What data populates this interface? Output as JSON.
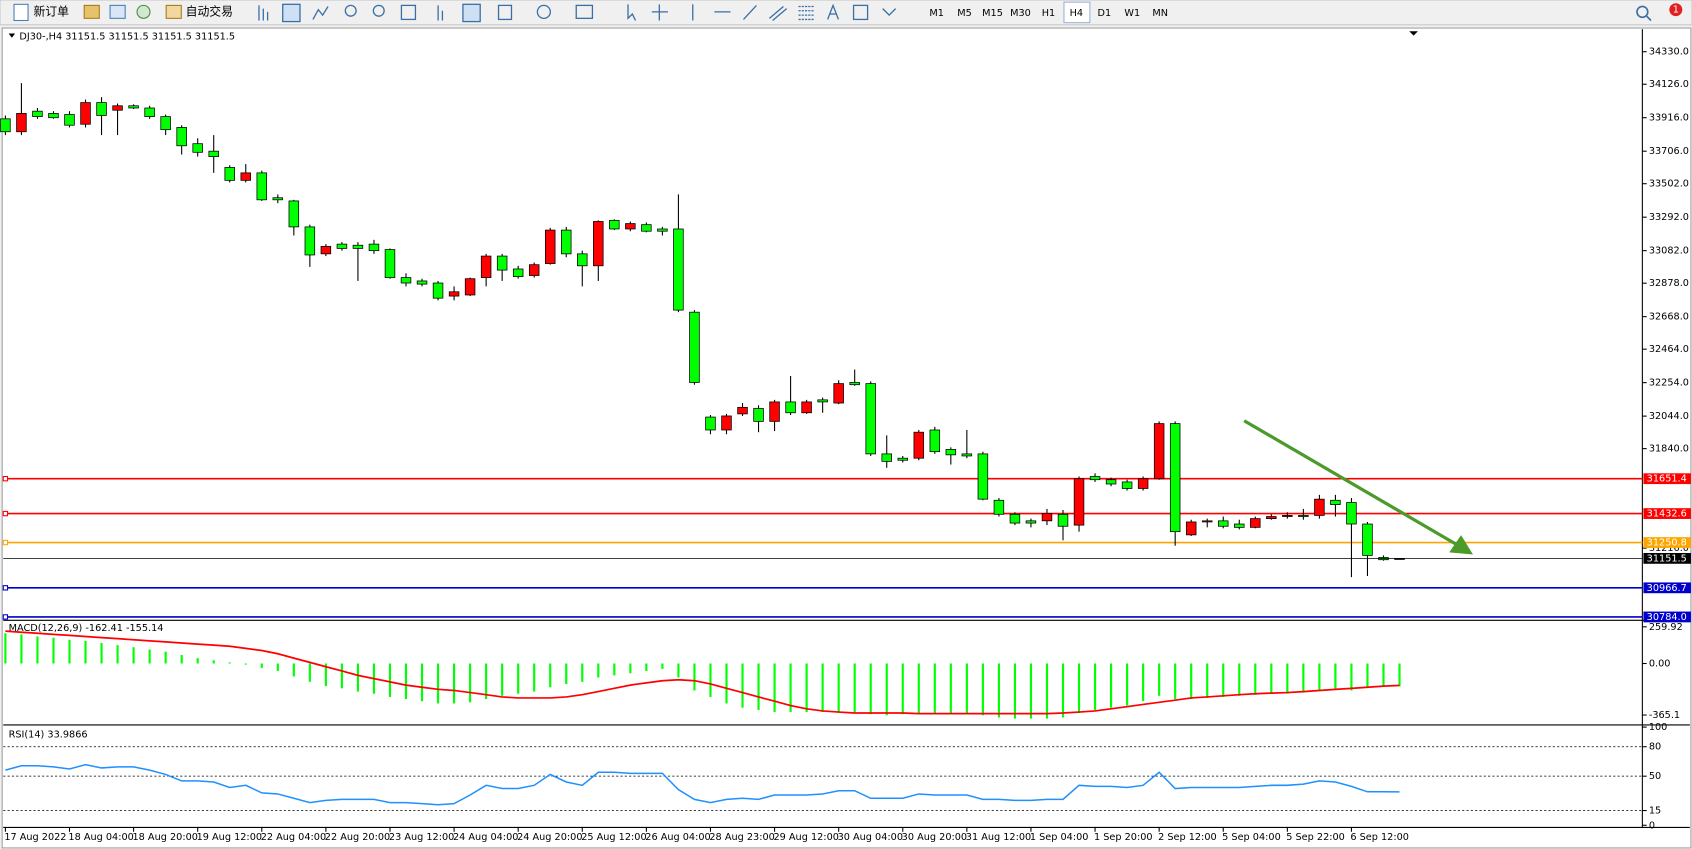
{
  "toolbar": {
    "new_order": "新订单",
    "auto_trading": "自动交易",
    "timeframes": [
      "M1",
      "M5",
      "M15",
      "M30",
      "H1",
      "H4",
      "D1",
      "W1",
      "MN"
    ],
    "notifications": 1
  },
  "chart_data": [
    {
      "type": "candlestick",
      "symbol": "DJ30-,H4",
      "categories": [
        "17 Aug 2022",
        null,
        null,
        null,
        "18 Aug 04:00",
        null,
        null,
        null,
        "18 Aug 20:00",
        null,
        null,
        null,
        "19 Aug 12:00",
        null,
        null,
        null,
        "22 Aug 04:00",
        null,
        null,
        null,
        "22 Aug 20:00",
        null,
        null,
        null,
        "23 Aug 12:00",
        null,
        null,
        null,
        "24 Aug 04:00",
        null,
        null,
        null,
        "24 Aug 20:00",
        null,
        null,
        null,
        "25 Aug 12:00",
        null,
        null,
        null,
        "26 Aug 04:00",
        null,
        null,
        null,
        "28 Aug 23:00",
        null,
        null,
        null,
        "29 Aug 12:00",
        null,
        null,
        null,
        "30 Aug 04:00",
        null,
        null,
        null,
        "30 Aug 20:00",
        null,
        null,
        null,
        "31 Aug 12:00",
        null,
        null,
        null,
        "1 Sep 04:00",
        null,
        null,
        null,
        "1 Sep 20:00",
        null,
        null,
        null,
        "2 Sep 12:00",
        null,
        null,
        null,
        "5 Sep 04:00",
        null,
        null,
        null,
        "5 Sep 22:00",
        null,
        null,
        null,
        "6 Sep 12:00",
        null,
        null,
        null
      ],
      "open": [
        33909,
        33828,
        33957,
        33943,
        33936,
        33875,
        34011,
        33963,
        33991,
        33977,
        33923,
        33855,
        33753,
        33706,
        33604,
        33523,
        33570,
        33414,
        33394,
        33231,
        33062,
        33123,
        33116,
        33123,
        33089,
        32913,
        32892,
        32879,
        32797,
        32804,
        32913,
        33048,
        32967,
        32926,
        33001,
        33211,
        33062,
        32987,
        33272,
        33218,
        33245,
        33218,
        33218,
        32696,
        32038,
        31957,
        32058,
        32092,
        32011,
        32133,
        32065,
        32146,
        32126,
        32255,
        32248,
        31807,
        31780,
        31780,
        31957,
        31835,
        31807,
        31807,
        31516,
        31428,
        31387,
        31387,
        31428,
        31360,
        31665,
        31645,
        31631,
        31590,
        31651,
        31997,
        31299,
        31380,
        31387,
        31367,
        31346,
        31401,
        31414,
        31421,
        31421,
        31516,
        31502,
        31367,
        31157,
        31151.5
      ],
      "high": [
        33930,
        34133,
        33977,
        33957,
        33957,
        34030,
        34045,
        34005,
        34000,
        33991,
        33936,
        33869,
        33787,
        33807,
        33618,
        33625,
        33584,
        33435,
        33401,
        33245,
        33123,
        33136,
        33136,
        33150,
        33096,
        32940,
        32906,
        32892,
        32858,
        32913,
        33062,
        33062,
        32987,
        33008,
        33225,
        33231,
        33082,
        33272,
        33279,
        33265,
        33259,
        33231,
        33435,
        32709,
        32051,
        32058,
        32126,
        32112,
        32146,
        32296,
        32146,
        32160,
        32269,
        32336,
        32262,
        31923,
        31794,
        31957,
        31977,
        31848,
        31957,
        31821,
        31530,
        31441,
        31401,
        31462,
        31455,
        31665,
        31685,
        31658,
        31645,
        31665,
        32011,
        32011,
        31394,
        31401,
        31414,
        31394,
        31414,
        31428,
        31441,
        31462,
        31550,
        31550,
        31530,
        31380,
        31170,
        31151.5
      ],
      "low": [
        33807,
        33807,
        33909,
        33909,
        33855,
        33855,
        33807,
        33807,
        33970,
        33909,
        33807,
        33685,
        33672,
        33570,
        33510,
        33510,
        33394,
        33380,
        33177,
        32980,
        33048,
        33082,
        32892,
        33062,
        32906,
        32858,
        32858,
        32770,
        32770,
        32797,
        32858,
        32892,
        32906,
        32913,
        32994,
        33041,
        32858,
        32892,
        33211,
        33204,
        33197,
        33177,
        32696,
        32241,
        31930,
        31930,
        32045,
        31943,
        31950,
        32051,
        32058,
        32065,
        32119,
        32234,
        31794,
        31720,
        31753,
        31767,
        31807,
        31740,
        31780,
        31516,
        31414,
        31360,
        31346,
        31360,
        31265,
        31319,
        31631,
        31604,
        31577,
        31577,
        31645,
        31231,
        31292,
        31346,
        31340,
        31333,
        31340,
        31394,
        31401,
        31394,
        31401,
        31414,
        31034,
        31041,
        31137,
        31151.5
      ],
      "close": [
        33828,
        33943,
        33923,
        33916,
        33869,
        34011,
        33930,
        33991,
        33977,
        33923,
        33841,
        33740,
        33699,
        33672,
        33523,
        33570,
        33401,
        33401,
        33231,
        33055,
        33109,
        33096,
        33096,
        33082,
        32913,
        32879,
        32872,
        32784,
        32824,
        32906,
        33048,
        32960,
        32919,
        32994,
        33211,
        33062,
        32987,
        33265,
        33218,
        33252,
        33204,
        33204,
        32709,
        32255,
        31957,
        32045,
        32099,
        32011,
        32133,
        32065,
        32133,
        32133,
        32248,
        32241,
        31807,
        31760,
        31767,
        31943,
        31821,
        31801,
        31794,
        31523,
        31428,
        31373,
        31373,
        31434,
        31353,
        31651,
        31645,
        31618,
        31590,
        31651,
        31997,
        31319,
        31380,
        31387,
        31353,
        31346,
        31401,
        31414,
        31421,
        31414,
        31523,
        31489,
        31367,
        31170,
        31143,
        31151.5
      ],
      "up_color": "#ff0000",
      "down_color": "#00ff00",
      "ylim": [
        30763,
        34465
      ],
      "yticks": [
        {
          "value": 34330,
          "label": "34330.0"
        },
        {
          "value": 34126,
          "label": "34126.0"
        },
        {
          "value": 33916,
          "label": "33916.0"
        },
        {
          "value": 33706,
          "label": "33706.0"
        },
        {
          "value": 33502,
          "label": "33502.0"
        },
        {
          "value": 33292,
          "label": "33292.0"
        },
        {
          "value": 33082,
          "label": "33082.0"
        },
        {
          "value": 32878,
          "label": "32878.0"
        },
        {
          "value": 32668,
          "label": "32668.0"
        },
        {
          "value": 32464,
          "label": "32464.0"
        },
        {
          "value": 32254,
          "label": "32254.0"
        },
        {
          "value": 32044,
          "label": "32044.0"
        },
        {
          "value": 31840,
          "label": "31840.0"
        },
        {
          "value": 31216,
          "label": "31216.0"
        }
      ],
      "hlines": [
        {
          "value": 31651.4,
          "color": "#ff0000"
        },
        {
          "value": 31432.6,
          "color": "#ff0000"
        },
        {
          "value": 31250.8,
          "color": "#ffa500"
        },
        {
          "value": 30966.7,
          "color": "#0000cc"
        },
        {
          "value": 30784,
          "label": "30784.0",
          "color": "#0000cc"
        }
      ]
    },
    {
      "type": "macd",
      "title": "MACD(12,26,9)",
      "series": [
        {
          "color": "#00ff00",
          "values": [
            214,
            206,
            191,
            183,
            168,
            160,
            145,
            130,
            115,
            99,
            84,
            61,
            38,
            23,
            8,
            -8,
            -31,
            -53,
            -92,
            -130,
            -160,
            -176,
            -199,
            -214,
            -237,
            -252,
            -267,
            -283,
            -283,
            -275,
            -252,
            -229,
            -214,
            -199,
            -168,
            -145,
            -130,
            -99,
            -84,
            -69,
            -53,
            -38,
            -99,
            -191,
            -237,
            -283,
            -313,
            -329,
            -344,
            -344,
            -344,
            -344,
            -344,
            -344,
            -359,
            -367,
            -359,
            -351,
            -351,
            -351,
            -359,
            -367,
            -382,
            -390,
            -390,
            -390,
            -382,
            -351,
            -329,
            -313,
            -298,
            -267,
            -229,
            -252,
            -252,
            -244,
            -237,
            -229,
            -222,
            -214,
            -214,
            -206,
            -191,
            -183,
            -191,
            -168,
            -165,
            -162.41
          ]
        },
        {
          "color": "#ff0000",
          "values": [
            229,
            221,
            214,
            206,
            199,
            191,
            183,
            176,
            168,
            160,
            153,
            145,
            137,
            130,
            122,
            107,
            92,
            69,
            38,
            8,
            -23,
            -53,
            -84,
            -107,
            -130,
            -153,
            -168,
            -183,
            -191,
            -206,
            -221,
            -237,
            -244,
            -244,
            -244,
            -237,
            -221,
            -199,
            -176,
            -153,
            -137,
            -122,
            -115,
            -122,
            -145,
            -176,
            -206,
            -237,
            -267,
            -298,
            -321,
            -336,
            -344,
            -351,
            -351,
            -351,
            -351,
            -355,
            -355,
            -355,
            -355,
            -355,
            -355,
            -355,
            -355,
            -355,
            -351,
            -344,
            -336,
            -321,
            -306,
            -290,
            -275,
            -260,
            -244,
            -237,
            -229,
            -221,
            -214,
            -210,
            -206,
            -199,
            -191,
            -183,
            -176,
            -168,
            -160,
            -155.14
          ]
        }
      ],
      "ylim": [
        -420,
        306
      ],
      "yticks": [
        259.92,
        {
          "value": 0,
          "label": "0.00"
        },
        -365.1
      ]
    },
    {
      "type": "line",
      "title": "RSI(14)",
      "color": "#1e90ff",
      "values": [
        56.2,
        60.6,
        60.6,
        59.5,
        57.3,
        61.7,
        58.4,
        59.5,
        59.5,
        56.2,
        51.8,
        45.2,
        45.2,
        44.1,
        38.5,
        40.7,
        33.0,
        31.9,
        27.5,
        23.1,
        25.3,
        26.4,
        26.4,
        26.4,
        23.1,
        23.1,
        22.0,
        20.9,
        22.0,
        30.8,
        40.7,
        37.4,
        37.4,
        40.7,
        51.8,
        44.1,
        40.7,
        54.0,
        54.0,
        52.9,
        52.9,
        52.9,
        36.3,
        26.4,
        23.1,
        26.4,
        27.5,
        26.4,
        30.8,
        30.8,
        30.8,
        31.9,
        35.2,
        35.2,
        27.5,
        27.5,
        27.5,
        31.9,
        30.8,
        30.8,
        30.8,
        26.4,
        26.4,
        25.3,
        25.3,
        26.4,
        26.4,
        40.7,
        39.6,
        39.6,
        38.5,
        40.7,
        54.0,
        37.4,
        38.5,
        38.5,
        38.5,
        38.5,
        39.6,
        40.7,
        40.7,
        41.9,
        45.2,
        44.1,
        39.6,
        34.1,
        34.1,
        33.9866
      ],
      "ylim": [
        0,
        100
      ],
      "yticks": [
        100,
        80,
        50,
        15,
        0
      ],
      "levels": [
        80,
        50,
        15
      ]
    }
  ]
}
